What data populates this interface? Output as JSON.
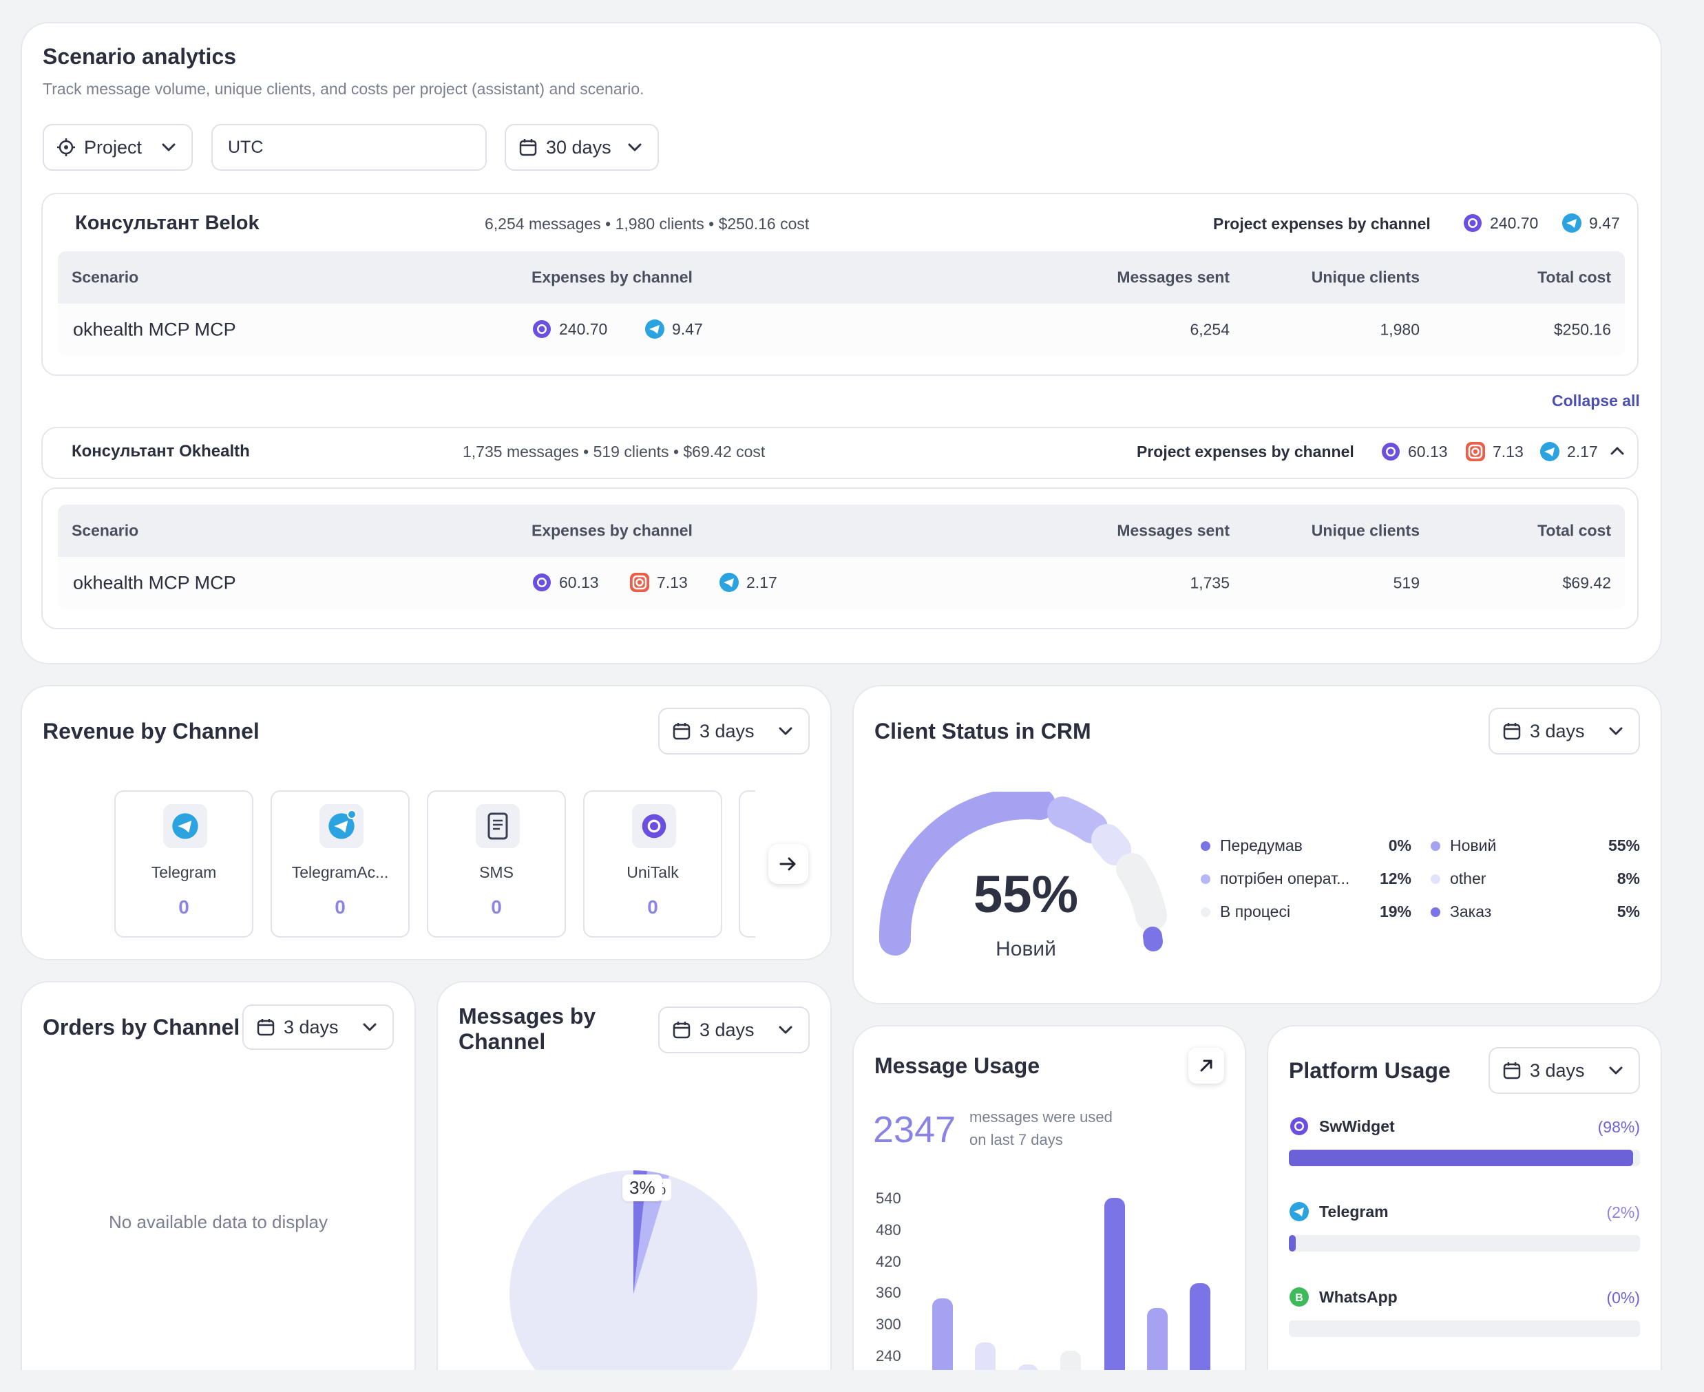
{
  "scenario": {
    "title": "Scenario analytics",
    "subtitle": "Track message volume, unique clients, and costs per project (assistant) and scenario.",
    "filters": {
      "project": "Project",
      "timezone": "UTC",
      "period": "30 days"
    },
    "collapse_all": "Collapse all",
    "columns": [
      "Scenario",
      "Expenses by channel",
      "Messages sent",
      "Unique clients",
      "Total cost"
    ],
    "projects": [
      {
        "name": "Консультант Belok",
        "meta": "6,254 messages • 1,980 clients • $250.16 cost",
        "expenses_label": "Project expenses by channel",
        "channel_values": {
          "unitalk": "240.70",
          "telegram": "9.47"
        },
        "row": {
          "scenario": "okhealth MCP MCP",
          "unitalk": "240.70",
          "telegram": "9.47",
          "messages": "6,254",
          "clients": "1,980",
          "cost": "$250.16"
        }
      },
      {
        "name": "Консультант Okhealth",
        "meta": "1,735 messages • 519 clients • $69.42 cost",
        "expenses_label": "Project expenses by channel",
        "channel_values": {
          "unitalk": "60.13",
          "instagram": "7.13",
          "telegram": "2.17"
        },
        "row": {
          "scenario": "okhealth MCP MCP",
          "unitalk": "60.13",
          "instagram": "7.13",
          "telegram": "2.17",
          "messages": "1,735",
          "clients": "519",
          "cost": "$69.42"
        }
      }
    ]
  },
  "revenue": {
    "title": "Revenue by Channel",
    "period": "3 days",
    "tiles": [
      {
        "label": "Telegram",
        "value": "0",
        "icon": "telegram-icon"
      },
      {
        "label": "TelegramAc...",
        "value": "0",
        "icon": "telegram-account-icon"
      },
      {
        "label": "SMS",
        "value": "0",
        "icon": "sms-icon"
      },
      {
        "label": "UniTalk",
        "value": "0",
        "icon": "unitalk-icon"
      }
    ]
  },
  "crm": {
    "title": "Client Status in CRM",
    "period": "3 days",
    "center_value": "55%",
    "center_label": "Новий",
    "legend": [
      {
        "label": "Передумав",
        "value": "0%",
        "color": "#7b74e6"
      },
      {
        "label": "Новий",
        "value": "55%",
        "color": "#a6a2f2"
      },
      {
        "label": "потрібен операт...",
        "value": "12%",
        "color": "#b7b6f7"
      },
      {
        "label": "other",
        "value": "8%",
        "color": "#e3e2fb"
      },
      {
        "label": "В процесі",
        "value": "19%",
        "color": "#eef0f2"
      },
      {
        "label": "Заказ",
        "value": "5%",
        "color": "#7b74e6"
      }
    ]
  },
  "orders": {
    "title": "Orders by Channel",
    "period": "3 days",
    "empty": "No available data to display"
  },
  "messages": {
    "title_line1": "Messages by",
    "title_line2": "Channel",
    "period": "3 days",
    "label_a": "3%",
    "label_b": "%"
  },
  "usage": {
    "title": "Message Usage",
    "value": "2347",
    "caption_line1": "messages were used",
    "caption_line2": "on last 7 days",
    "yticks": [
      "540",
      "480",
      "420",
      "360",
      "300",
      "240"
    ]
  },
  "platform": {
    "title": "Platform Usage",
    "period": "3 days",
    "items": [
      {
        "name": "SwWidget",
        "pct": "(98%)",
        "fraction": 0.98
      },
      {
        "name": "Telegram",
        "pct": "(2%)",
        "fraction": 0.02
      },
      {
        "name": "WhatsApp",
        "pct": "(0%)",
        "fraction": 0.0
      }
    ]
  },
  "colors": {
    "accent": "#6a62d6",
    "unitalk": "#6a4fe0",
    "telegram": "#2aa3e0",
    "instagram": "#e0466e",
    "whatsapp": "#3dbb5a"
  }
}
